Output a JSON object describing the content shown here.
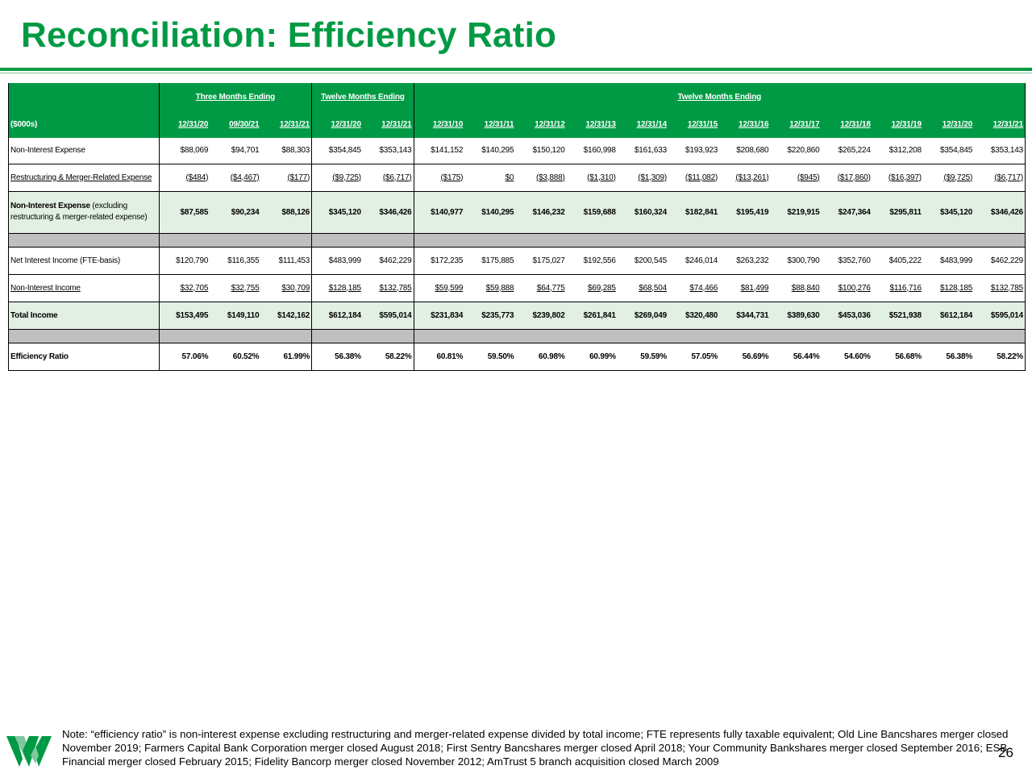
{
  "page": {
    "title": "Reconciliation: Efficiency Ratio",
    "page_number": "26",
    "brand_color": "#009a44"
  },
  "table": {
    "group_headers": [
      "Three Months Ending",
      "Twelve Months Ending",
      "Twelve Months Ending"
    ],
    "unit_label": "($000s)",
    "columns": [
      "12/31/20",
      "09/30/21",
      "12/31/21",
      "12/31/20",
      "12/31/21",
      "12/31/10",
      "12/31/11",
      "12/31/12",
      "12/31/13",
      "12/31/14",
      "12/31/15",
      "12/31/16",
      "12/31/17",
      "12/31/18",
      "12/31/19",
      "12/31/20",
      "12/31/21"
    ],
    "rows": [
      {
        "label": "Non-Interest Expense",
        "values": [
          "$88,069",
          "$94,701",
          "$88,303",
          "$354,845",
          "$353,143",
          "$141,152",
          "$140,295",
          "$150,120",
          "$160,998",
          "$161,633",
          "$193,923",
          "$208,680",
          "$220,860",
          "$265,224",
          "$312,208",
          "$354,845",
          "$353,143"
        ]
      },
      {
        "label": "Restructuring & Merger-Related Expense",
        "values": [
          "($484)",
          "($4,467)",
          "($177)",
          "($9,725)",
          "($6,717)",
          "($175)",
          "$0",
          "($3,888)",
          "($1,310)",
          "($1,309)",
          "($11,082)",
          "($13,261)",
          "($945)",
          "($17,860)",
          "($16,397)",
          "($9,725)",
          "($6,717)"
        ]
      },
      {
        "label": "Non-Interest Expense",
        "label_suffix": " (excluding restructuring & merger-related expense)",
        "values": [
          "$87,585",
          "$90,234",
          "$88,126",
          "$345,120",
          "$346,426",
          "$140,977",
          "$140,295",
          "$146,232",
          "$159,688",
          "$160,324",
          "$182,841",
          "$195,419",
          "$219,915",
          "$247,364",
          "$295,811",
          "$345,120",
          "$346,426"
        ]
      },
      {
        "label": "Net Interest Income (FTE-basis)",
        "values": [
          "$120,790",
          "$116,355",
          "$111,453",
          "$483,999",
          "$462,229",
          "$172,235",
          "$175,885",
          "$175,027",
          "$192,556",
          "$200,545",
          "$246,014",
          "$263,232",
          "$300,790",
          "$352,760",
          "$405,222",
          "$483,999",
          "$462,229"
        ]
      },
      {
        "label": "Non-Interest Income",
        "values": [
          "$32,705",
          "$32,755",
          "$30,709",
          "$128,185",
          "$132,785",
          "$59,599",
          "$59,888",
          "$64,775",
          "$69,285",
          "$68,504",
          "$74,466",
          "$81,499",
          "$88,840",
          "$100,276",
          "$116,716",
          "$128,185",
          "$132,785"
        ]
      },
      {
        "label": "Total Income",
        "values": [
          "$153,495",
          "$149,110",
          "$142,162",
          "$612,184",
          "$595,014",
          "$231,834",
          "$235,773",
          "$239,802",
          "$261,841",
          "$269,049",
          "$320,480",
          "$344,731",
          "$389,630",
          "$453,036",
          "$521,938",
          "$612,184",
          "$595,014"
        ]
      },
      {
        "label": "Efficiency Ratio",
        "values": [
          "57.06%",
          "60.52%",
          "61.99%",
          "56.38%",
          "58.22%",
          "60.81%",
          "59.50%",
          "60.98%",
          "60.99%",
          "59.59%",
          "57.05%",
          "56.69%",
          "56.44%",
          "54.60%",
          "56.68%",
          "56.38%",
          "58.22%"
        ]
      }
    ]
  },
  "footnote": "Note: “efficiency ratio” is non-interest expense excluding restructuring and merger-related expense divided by total income; FTE represents fully taxable equivalent; Old Line Bancshares merger closed November 2019; Farmers Capital Bank Corporation merger closed August 2018; First Sentry Bancshares merger closed April 2018; Your Community Bankshares merger closed September 2016; ESB Financial merger closed February 2015; Fidelity Bancorp merger closed November 2012; AmTrust 5 branch acquisition closed March 2009",
  "logo": {
    "icon": "wesbanco-w-logo-icon"
  }
}
